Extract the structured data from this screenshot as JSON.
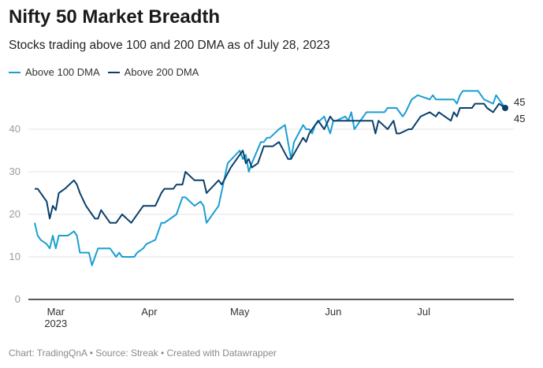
{
  "title": "Nifty 50 Market Breadth",
  "subtitle": "Stocks trading above 100 and 200 DMA as of July 28, 2023",
  "footer": "Chart: TradingQnA • Source: Streak • Created with Datawrapper",
  "chart_data": {
    "type": "line",
    "title": "Nifty 50 Market Breadth",
    "subtitle": "Stocks trading above 100 and 200 DMA as of July 28, 2023",
    "xlabel": "",
    "ylabel": "",
    "xlim": [
      "2023-02-22",
      "2023-07-28"
    ],
    "ylim": [
      0,
      50
    ],
    "y_ticks": [
      "0",
      "10",
      "20",
      "30",
      "40"
    ],
    "x_ticks": [
      {
        "date": "2023-03-01",
        "label": "Mar",
        "sub": "2023"
      },
      {
        "date": "2023-04-01",
        "label": "Apr",
        "sub": ""
      },
      {
        "date": "2023-05-01",
        "label": "May",
        "sub": ""
      },
      {
        "date": "2023-06-01",
        "label": "Jun",
        "sub": ""
      },
      {
        "date": "2023-07-01",
        "label": "Jul",
        "sub": ""
      }
    ],
    "grid": true,
    "legend": "top-left",
    "series": [
      {
        "name": "Above 100 DMA",
        "color": "#1a9fd4",
        "end_label": "45",
        "points": [
          [
            "2023-02-22",
            18
          ],
          [
            "2023-02-23",
            15
          ],
          [
            "2023-02-24",
            14
          ],
          [
            "2023-02-26",
            13
          ],
          [
            "2023-02-27",
            12
          ],
          [
            "2023-02-28",
            15
          ],
          [
            "2023-03-01",
            12
          ],
          [
            "2023-03-02",
            15
          ],
          [
            "2023-03-05",
            15
          ],
          [
            "2023-03-07",
            16
          ],
          [
            "2023-03-08",
            15
          ],
          [
            "2023-03-09",
            11
          ],
          [
            "2023-03-12",
            11
          ],
          [
            "2023-03-13",
            8
          ],
          [
            "2023-03-14",
            10
          ],
          [
            "2023-03-15",
            12
          ],
          [
            "2023-03-19",
            12
          ],
          [
            "2023-03-21",
            10
          ],
          [
            "2023-03-22",
            11
          ],
          [
            "2023-03-23",
            10
          ],
          [
            "2023-03-27",
            10
          ],
          [
            "2023-03-28",
            11
          ],
          [
            "2023-03-30",
            12
          ],
          [
            "2023-03-31",
            13
          ],
          [
            "2023-04-03",
            14
          ],
          [
            "2023-04-05",
            18
          ],
          [
            "2023-04-06",
            18
          ],
          [
            "2023-04-10",
            20
          ],
          [
            "2023-04-12",
            24
          ],
          [
            "2023-04-13",
            24
          ],
          [
            "2023-04-16",
            22
          ],
          [
            "2023-04-18",
            23
          ],
          [
            "2023-04-19",
            22
          ],
          [
            "2023-04-20",
            18
          ],
          [
            "2023-04-24",
            22
          ],
          [
            "2023-04-27",
            32
          ],
          [
            "2023-05-01",
            35
          ],
          [
            "2023-05-02",
            33
          ],
          [
            "2023-05-03",
            34
          ],
          [
            "2023-05-04",
            30
          ],
          [
            "2023-05-05",
            32
          ],
          [
            "2023-05-08",
            37
          ],
          [
            "2023-05-09",
            37
          ],
          [
            "2023-05-10",
            38
          ],
          [
            "2023-05-11",
            38
          ],
          [
            "2023-05-14",
            40
          ],
          [
            "2023-05-16",
            41
          ],
          [
            "2023-05-18",
            33
          ],
          [
            "2023-05-19",
            37
          ],
          [
            "2023-05-22",
            41
          ],
          [
            "2023-05-23",
            40
          ],
          [
            "2023-05-24",
            40
          ],
          [
            "2023-05-25",
            39
          ],
          [
            "2023-05-26",
            41
          ],
          [
            "2023-05-29",
            43
          ],
          [
            "2023-05-30",
            41
          ],
          [
            "2023-05-31",
            39
          ],
          [
            "2023-06-01",
            42
          ],
          [
            "2023-06-02",
            42
          ],
          [
            "2023-06-05",
            43
          ],
          [
            "2023-06-06",
            42
          ],
          [
            "2023-06-07",
            44
          ],
          [
            "2023-06-08",
            40
          ],
          [
            "2023-06-10",
            42
          ],
          [
            "2023-06-12",
            44
          ],
          [
            "2023-06-18",
            44
          ],
          [
            "2023-06-19",
            45
          ],
          [
            "2023-06-22",
            45
          ],
          [
            "2023-06-24",
            43
          ],
          [
            "2023-06-25",
            44
          ],
          [
            "2023-06-27",
            47
          ],
          [
            "2023-06-29",
            48
          ],
          [
            "2023-07-03",
            47
          ],
          [
            "2023-07-04",
            48
          ],
          [
            "2023-07-05",
            47
          ],
          [
            "2023-07-11",
            47
          ],
          [
            "2023-07-12",
            46
          ],
          [
            "2023-07-13",
            48
          ],
          [
            "2023-07-14",
            49
          ],
          [
            "2023-07-19",
            49
          ],
          [
            "2023-07-20",
            48
          ],
          [
            "2023-07-21",
            47
          ],
          [
            "2023-07-24",
            46
          ],
          [
            "2023-07-25",
            48
          ],
          [
            "2023-07-26",
            47
          ],
          [
            "2023-07-28",
            45
          ]
        ]
      },
      {
        "name": "Above 200 DMA",
        "color": "#0b3f6b",
        "end_label": "45",
        "points": [
          [
            "2023-02-22",
            26
          ],
          [
            "2023-02-23",
            26
          ],
          [
            "2023-02-26",
            23
          ],
          [
            "2023-02-27",
            19
          ],
          [
            "2023-02-28",
            22
          ],
          [
            "2023-03-01",
            21
          ],
          [
            "2023-03-02",
            25
          ],
          [
            "2023-03-04",
            26
          ],
          [
            "2023-03-07",
            28
          ],
          [
            "2023-03-08",
            27
          ],
          [
            "2023-03-09",
            25
          ],
          [
            "2023-03-11",
            22
          ],
          [
            "2023-03-13",
            20
          ],
          [
            "2023-03-14",
            19
          ],
          [
            "2023-03-15",
            19
          ],
          [
            "2023-03-16",
            21
          ],
          [
            "2023-03-19",
            18
          ],
          [
            "2023-03-21",
            18
          ],
          [
            "2023-03-23",
            20
          ],
          [
            "2023-03-26",
            18
          ],
          [
            "2023-03-30",
            22
          ],
          [
            "2023-04-03",
            22
          ],
          [
            "2023-04-05",
            25
          ],
          [
            "2023-04-06",
            26
          ],
          [
            "2023-04-09",
            26
          ],
          [
            "2023-04-10",
            27
          ],
          [
            "2023-04-12",
            27
          ],
          [
            "2023-04-13",
            30
          ],
          [
            "2023-04-16",
            28
          ],
          [
            "2023-04-19",
            28
          ],
          [
            "2023-04-20",
            25
          ],
          [
            "2023-04-24",
            28
          ],
          [
            "2023-04-25",
            27
          ],
          [
            "2023-04-28",
            31
          ],
          [
            "2023-05-02",
            35
          ],
          [
            "2023-05-03",
            32
          ],
          [
            "2023-05-04",
            33
          ],
          [
            "2023-05-05",
            31
          ],
          [
            "2023-05-07",
            32
          ],
          [
            "2023-05-09",
            36
          ],
          [
            "2023-05-12",
            36
          ],
          [
            "2023-05-14",
            37
          ],
          [
            "2023-05-17",
            33
          ],
          [
            "2023-05-18",
            33
          ],
          [
            "2023-05-22",
            38
          ],
          [
            "2023-05-23",
            37
          ],
          [
            "2023-05-24",
            39
          ],
          [
            "2023-05-27",
            42
          ],
          [
            "2023-05-29",
            40
          ],
          [
            "2023-05-31",
            43
          ],
          [
            "2023-06-01",
            42
          ],
          [
            "2023-06-02",
            42
          ],
          [
            "2023-06-08",
            42
          ],
          [
            "2023-06-14",
            42
          ],
          [
            "2023-06-15",
            39
          ],
          [
            "2023-06-16",
            42
          ],
          [
            "2023-06-19",
            40
          ],
          [
            "2023-06-21",
            42
          ],
          [
            "2023-06-22",
            39
          ],
          [
            "2023-06-23",
            39
          ],
          [
            "2023-06-26",
            40
          ],
          [
            "2023-06-27",
            40
          ],
          [
            "2023-06-30",
            43
          ],
          [
            "2023-07-03",
            44
          ],
          [
            "2023-07-05",
            43
          ],
          [
            "2023-07-06",
            44
          ],
          [
            "2023-07-10",
            42
          ],
          [
            "2023-07-11",
            44
          ],
          [
            "2023-07-12",
            43
          ],
          [
            "2023-07-13",
            45
          ],
          [
            "2023-07-17",
            45
          ],
          [
            "2023-07-18",
            46
          ],
          [
            "2023-07-21",
            46
          ],
          [
            "2023-07-22",
            45
          ],
          [
            "2023-07-24",
            44
          ],
          [
            "2023-07-26",
            46
          ],
          [
            "2023-07-28",
            45
          ]
        ]
      }
    ]
  }
}
